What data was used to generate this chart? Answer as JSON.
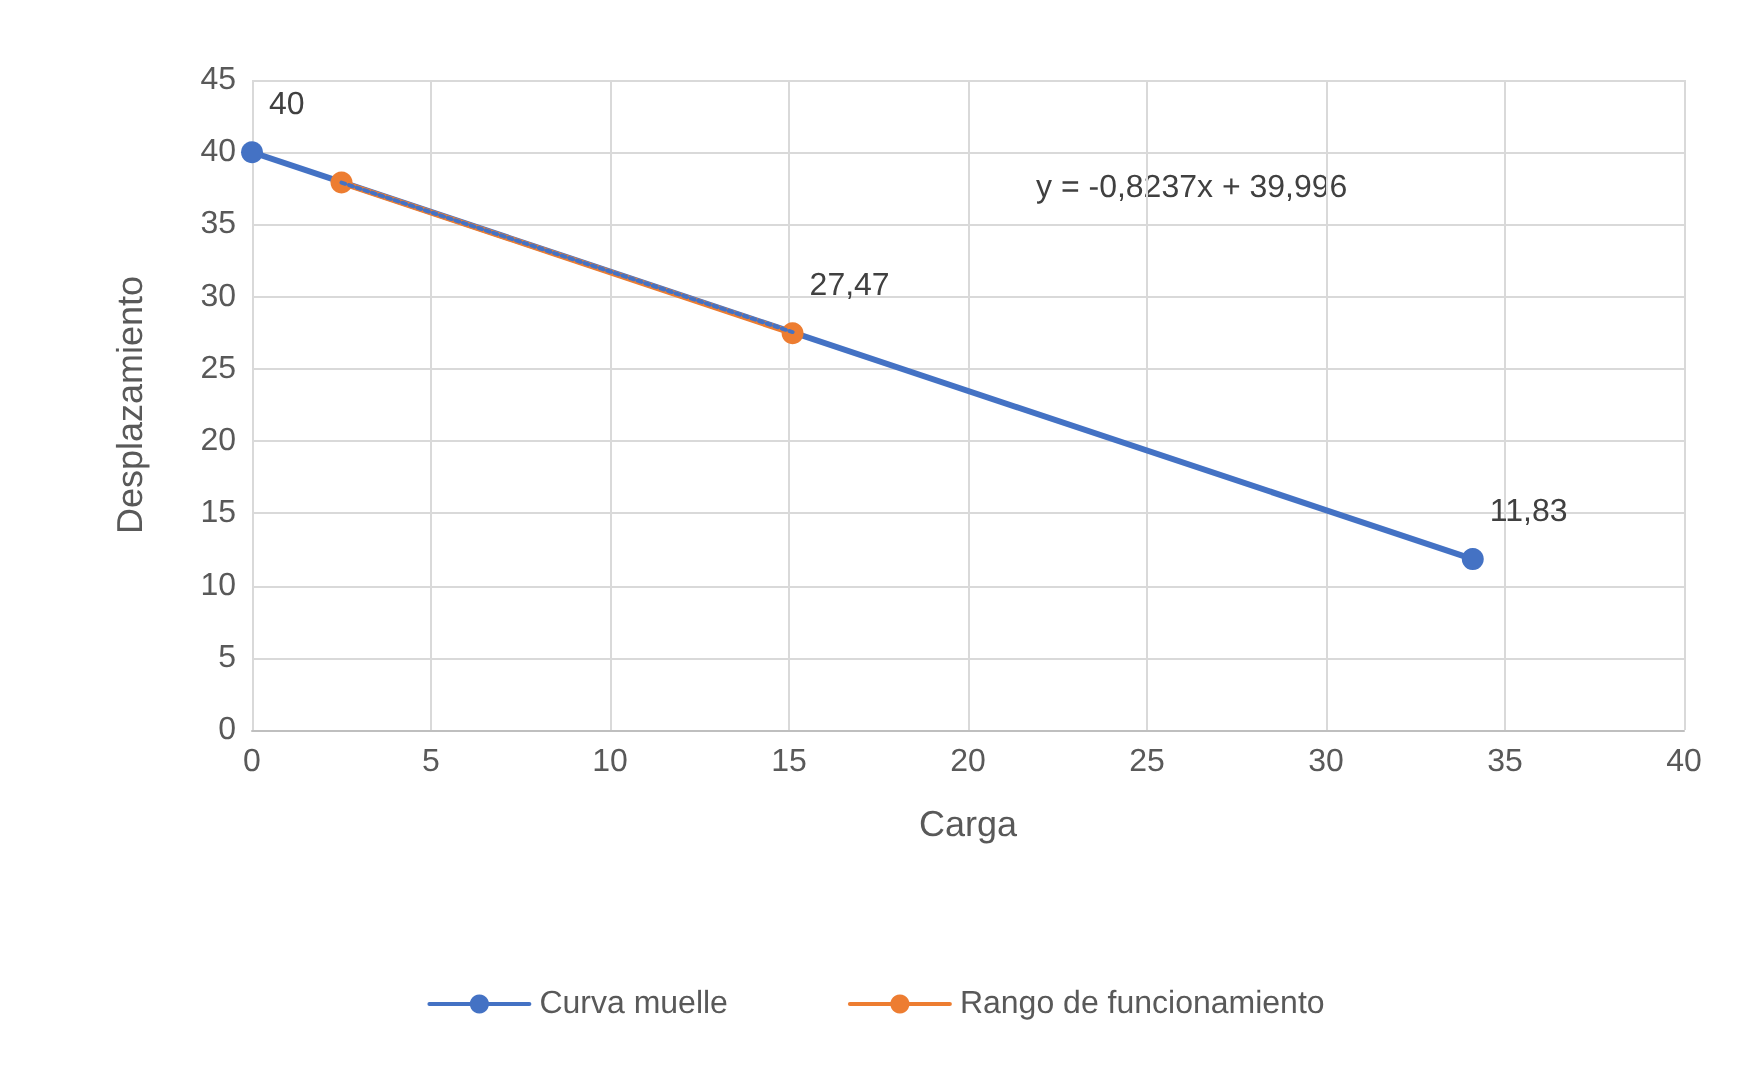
{
  "chart_data": {
    "type": "line",
    "xlabel": "Carga",
    "ylabel": "Desplazamiento",
    "xlim": [
      0,
      40
    ],
    "xticks": [
      0,
      5,
      10,
      15,
      20,
      25,
      30,
      35,
      40
    ],
    "ylim": [
      0,
      45
    ],
    "yticks": [
      0,
      5,
      10,
      15,
      20,
      25,
      30,
      35,
      40,
      45
    ],
    "grid": true,
    "legend": "bottom",
    "marker": "circle",
    "annotations": [
      "y = -0,8237x + 39,996"
    ],
    "series": [
      {
        "name": "Curva muelle",
        "color": "#4472c4",
        "x": [
          0,
          34.1
        ],
        "values": [
          40,
          11.83
        ],
        "value_labels": [
          "40",
          "11,83"
        ]
      },
      {
        "name": "Rango de funcionamiento",
        "color": "#ed7d31",
        "x": [
          2.5,
          15.1
        ],
        "values": [
          37.9,
          27.47
        ],
        "value_labels": [
          null,
          "27,47"
        ]
      },
      {
        "type": "line",
        "color": "#4472c4",
        "x": [
          2.5,
          15.1
        ],
        "values": [
          37.9,
          27.55
        ],
        "marker": "none",
        "line_style": "dotted"
      }
    ]
  }
}
